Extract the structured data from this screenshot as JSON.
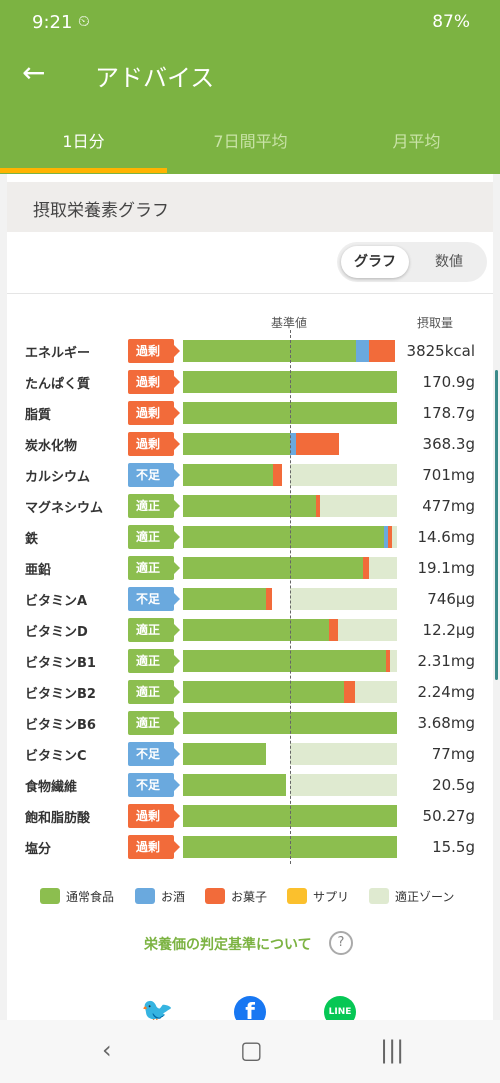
{
  "status": {
    "time": "9:21",
    "battery": "87%"
  },
  "appbar": {
    "back_icon": "arrow-back-icon",
    "title": "アドバイス"
  },
  "tabs": [
    {
      "label": "1日分",
      "active": true
    },
    {
      "label": "7日間平均",
      "active": false
    },
    {
      "label": "月平均",
      "active": false
    }
  ],
  "card": {
    "title": "摂取栄養素グラフ",
    "toggle": {
      "graph": "グラフ",
      "numbers": "数値",
      "selected": "グラフ"
    },
    "col_base": "基準値",
    "col_intake": "摂取量"
  },
  "colors": {
    "normal_food": "#8cbe4f",
    "alcohol": "#6aa9de",
    "snacks": "#f26b3a",
    "supplement": "#fbc02d",
    "optimal_zone": "#dfead0",
    "accent": "#7cb342"
  },
  "nutrients": [
    {
      "name": "エネルギー",
      "status": "過剰",
      "status_key": "excess",
      "value": "3825kcal",
      "zone": [
        0.44,
        0.54
      ],
      "parts": {
        "normal": 0.81,
        "alcohol": 0.06,
        "snacks": 0.12,
        "supplement": 0
      }
    },
    {
      "name": "たんぱく質",
      "status": "過剰",
      "status_key": "excess",
      "value": "170.9g",
      "zone": [
        0.44,
        0.54
      ],
      "parts": {
        "normal": 1.0,
        "alcohol": 0,
        "snacks": 0,
        "supplement": 0
      }
    },
    {
      "name": "脂質",
      "status": "過剰",
      "status_key": "excess",
      "value": "178.7g",
      "zone": [
        0.44,
        0.54
      ],
      "parts": {
        "normal": 1.0,
        "alcohol": 0,
        "snacks": 0,
        "supplement": 0
      }
    },
    {
      "name": "炭水化物",
      "status": "過剰",
      "status_key": "excess",
      "value": "368.3g",
      "zone": [
        0.44,
        0.54
      ],
      "parts": {
        "normal": 0.5,
        "alcohol": 0.03,
        "snacks": 0.2,
        "supplement": 0
      }
    },
    {
      "name": "カルシウム",
      "status": "不足",
      "status_key": "lack",
      "value": "701mg",
      "zone": [
        0.5,
        1.0
      ],
      "parts": {
        "normal": 0.42,
        "alcohol": 0,
        "snacks": 0.04,
        "supplement": 0
      }
    },
    {
      "name": "マグネシウム",
      "status": "適正",
      "status_key": "ok",
      "value": "477mg",
      "zone": [
        0.5,
        1.0
      ],
      "parts": {
        "normal": 0.62,
        "alcohol": 0,
        "snacks": 0.02,
        "supplement": 0
      }
    },
    {
      "name": "鉄",
      "status": "適正",
      "status_key": "ok",
      "value": "14.6mg",
      "zone": [
        0.5,
        1.0
      ],
      "parts": {
        "normal": 0.94,
        "alcohol": 0.02,
        "snacks": 0.02,
        "supplement": 0
      }
    },
    {
      "name": "亜鉛",
      "status": "適正",
      "status_key": "ok",
      "value": "19.1mg",
      "zone": [
        0.5,
        1.0
      ],
      "parts": {
        "normal": 0.84,
        "alcohol": 0,
        "snacks": 0.03,
        "supplement": 0
      }
    },
    {
      "name": "ビタミンA",
      "status": "不足",
      "status_key": "lack",
      "value": "746μg",
      "zone": [
        0.5,
        1.0
      ],
      "parts": {
        "normal": 0.39,
        "alcohol": 0,
        "snacks": 0.03,
        "supplement": 0
      }
    },
    {
      "name": "ビタミンD",
      "status": "適正",
      "status_key": "ok",
      "value": "12.2μg",
      "zone": [
        0.5,
        1.0
      ],
      "parts": {
        "normal": 0.68,
        "alcohol": 0,
        "snacks": 0.04,
        "supplement": 0
      }
    },
    {
      "name": "ビタミンB1",
      "status": "適正",
      "status_key": "ok",
      "value": "2.31mg",
      "zone": [
        0.5,
        1.0
      ],
      "parts": {
        "normal": 0.95,
        "alcohol": 0,
        "snacks": 0.02,
        "supplement": 0
      }
    },
    {
      "name": "ビタミンB2",
      "status": "適正",
      "status_key": "ok",
      "value": "2.24mg",
      "zone": [
        0.5,
        1.0
      ],
      "parts": {
        "normal": 0.75,
        "alcohol": 0,
        "snacks": 0.05,
        "supplement": 0
      }
    },
    {
      "name": "ビタミンB6",
      "status": "適正",
      "status_key": "ok",
      "value": "3.68mg",
      "zone": [
        0.5,
        1.0
      ],
      "parts": {
        "normal": 1.0,
        "alcohol": 0,
        "snacks": 0,
        "supplement": 0
      }
    },
    {
      "name": "ビタミンC",
      "status": "不足",
      "status_key": "lack",
      "value": "77mg",
      "zone": [
        0.5,
        1.0
      ],
      "parts": {
        "normal": 0.39,
        "alcohol": 0,
        "snacks": 0,
        "supplement": 0
      }
    },
    {
      "name": "食物繊維",
      "status": "不足",
      "status_key": "lack",
      "value": "20.5g",
      "zone": [
        0.5,
        1.0
      ],
      "parts": {
        "normal": 0.48,
        "alcohol": 0,
        "snacks": 0,
        "supplement": 0
      }
    },
    {
      "name": "飽和脂肪酸",
      "status": "過剰",
      "status_key": "excess",
      "value": "50.27g",
      "zone": [
        0.44,
        0.54
      ],
      "parts": {
        "normal": 1.0,
        "alcohol": 0,
        "snacks": 0,
        "supplement": 0
      }
    },
    {
      "name": "塩分",
      "status": "過剰",
      "status_key": "excess",
      "value": "15.5g",
      "zone": [
        0.44,
        0.54
      ],
      "parts": {
        "normal": 1.0,
        "alcohol": 0,
        "snacks": 0,
        "supplement": 0
      }
    }
  ],
  "legend": [
    {
      "label": "通常食品",
      "color_key": "normal_food"
    },
    {
      "label": "お酒",
      "color_key": "alcohol"
    },
    {
      "label": "お菓子",
      "color_key": "snacks"
    },
    {
      "label": "サプリ",
      "color_key": "supplement"
    },
    {
      "label": "適正ゾーン",
      "color_key": "optimal_zone"
    }
  ],
  "criteria_link": "栄養価の判定基準について",
  "share": {
    "twitter_icon": "twitter-icon",
    "facebook_icon": "facebook-icon",
    "line_label": "LINE"
  },
  "nav": {
    "back_icon": "nav-back-icon",
    "home_icon": "nav-home-icon",
    "recents_icon": "nav-recents-icon"
  }
}
